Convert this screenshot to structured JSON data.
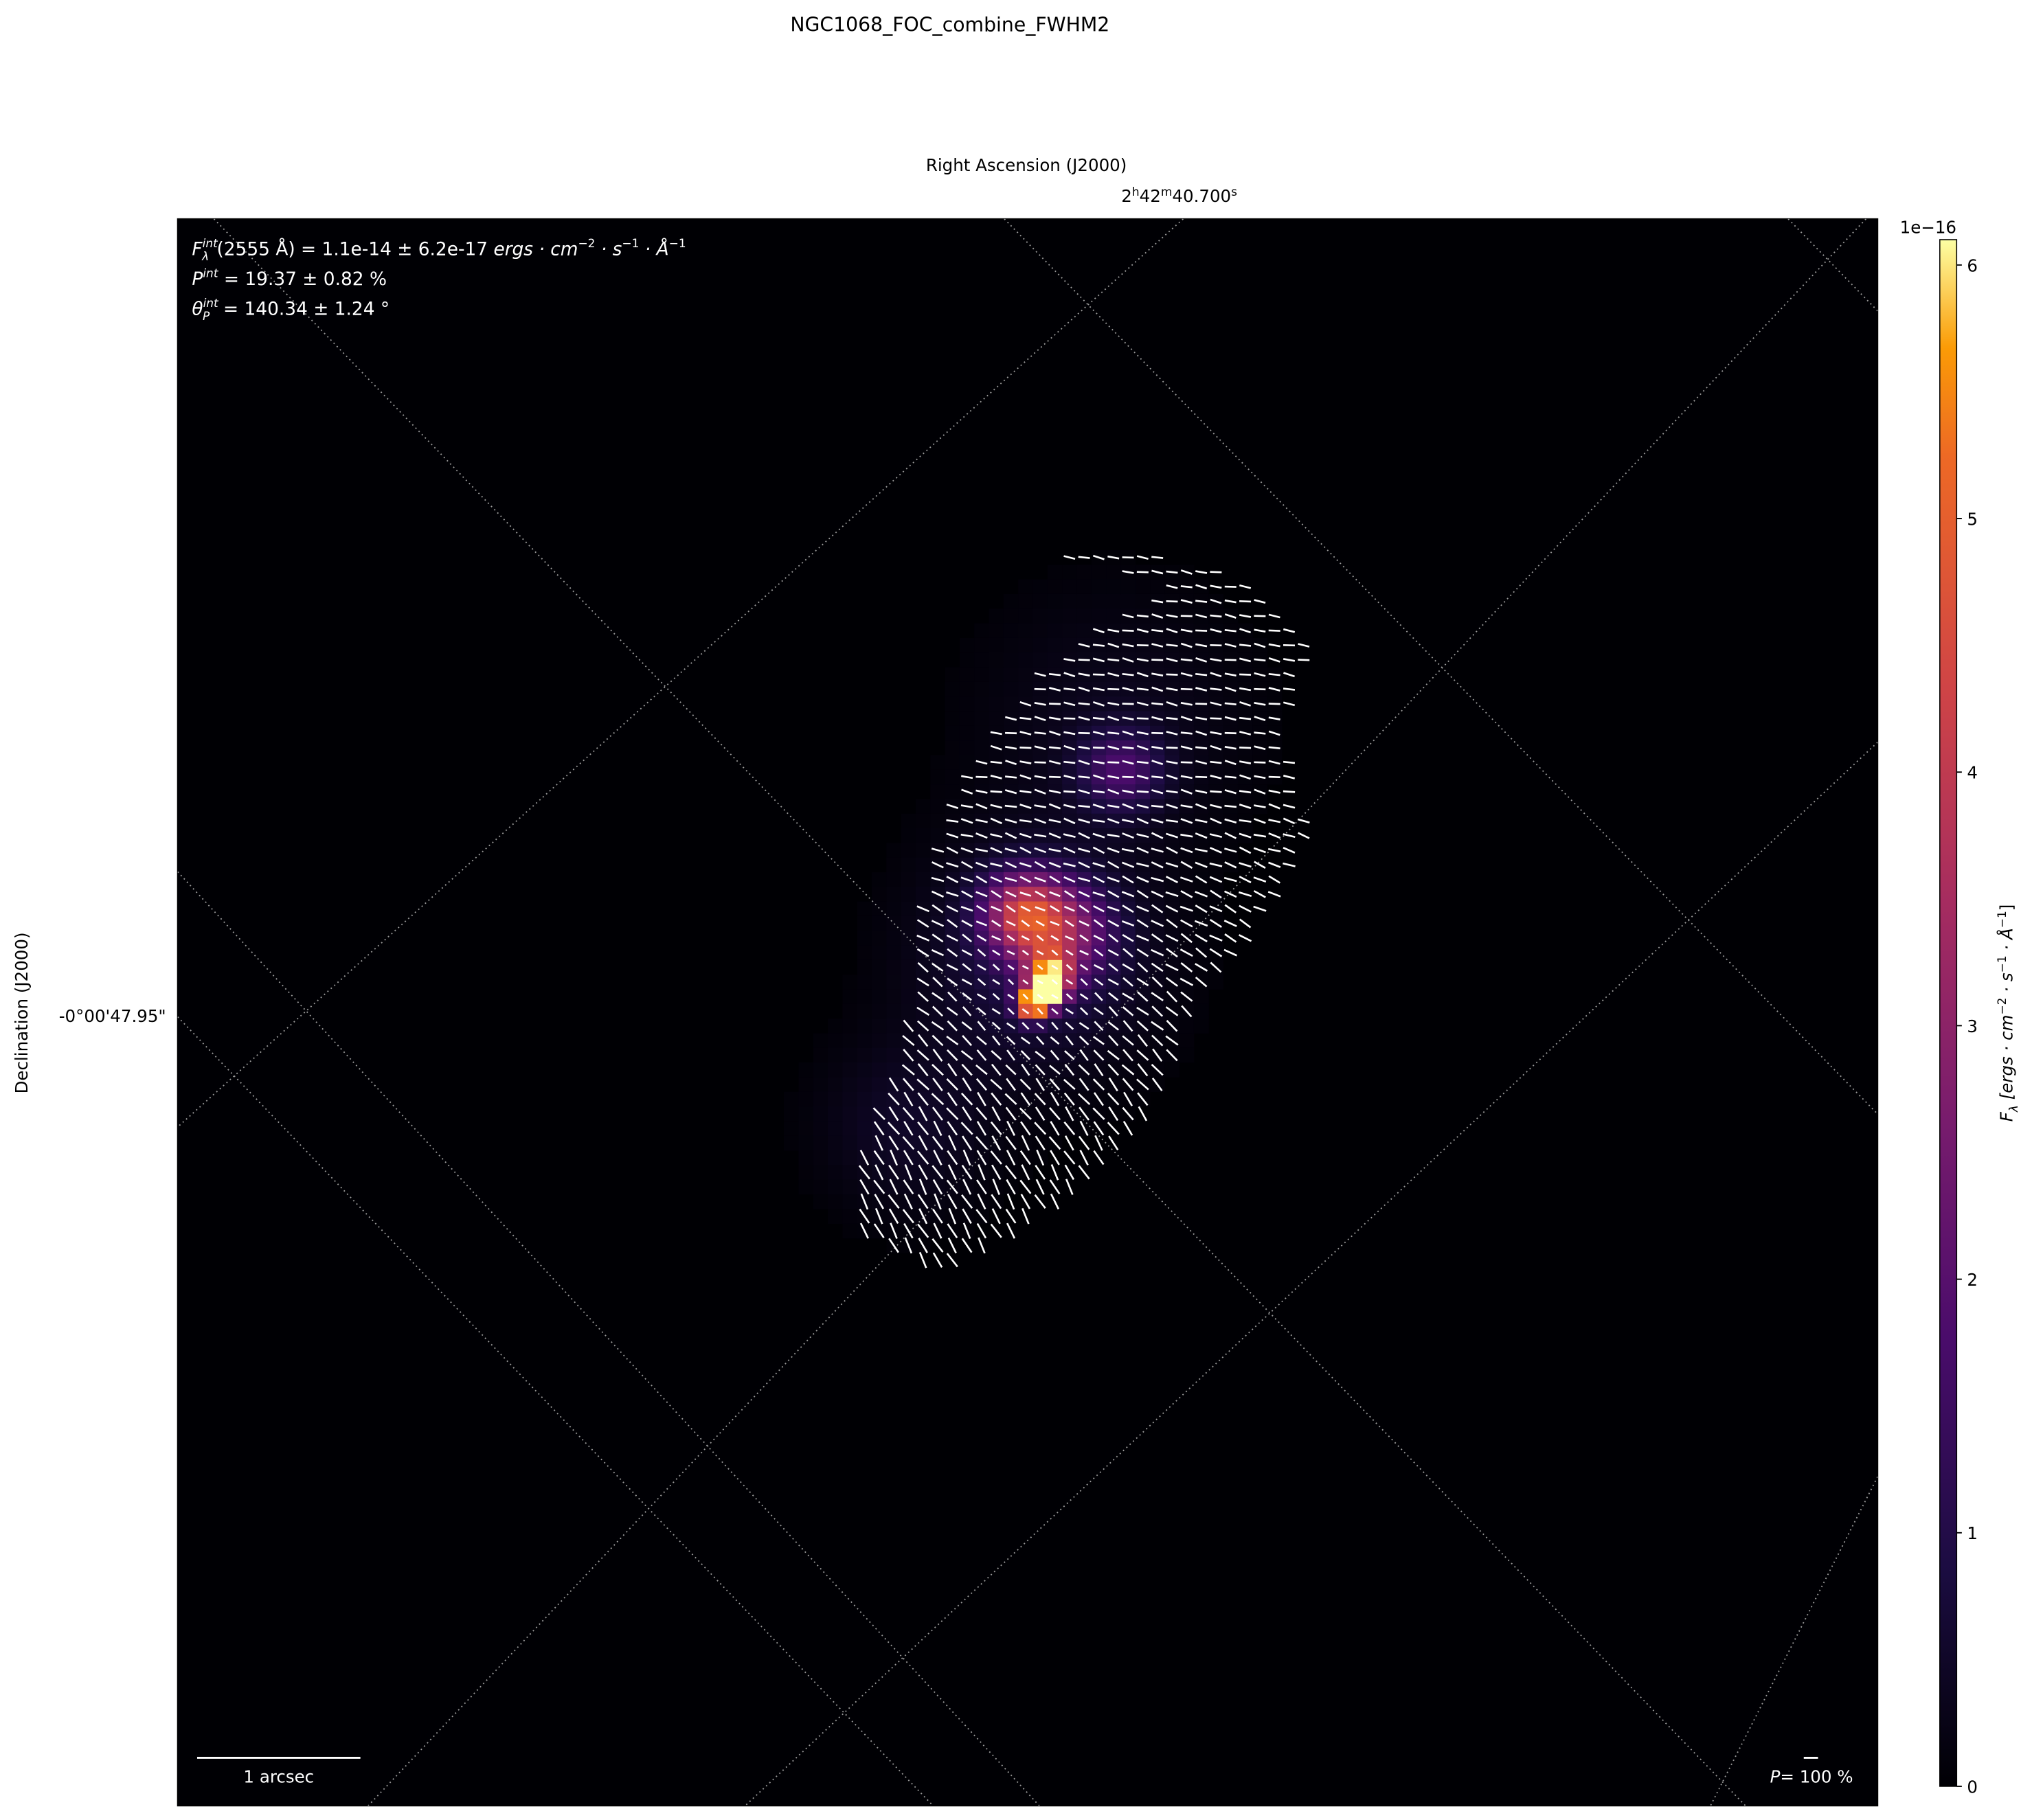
{
  "chart_data": {
    "type": "heatmap",
    "title": "NGC1068_FOC_combine_FWHM2",
    "xlabel": "Right Ascension (J2000)",
    "ylabel": "Declination (J2000)",
    "x_tick_labels": [
      "2h42m40.700s"
    ],
    "x_tick": {
      "h": "2",
      "m": "42",
      "s": "40.700"
    },
    "y_tick_labels": [
      "-0°00'47.95\""
    ],
    "colormap": "inferno",
    "colorbar": {
      "label": "F_λ [ergs · cm^-2 · s^-1 · Å^-1]",
      "label_parts": {
        "sym": "F",
        "sub": "λ",
        "units": "[ergs · cm",
        "e1": "−2",
        "s": " · s",
        "e2": "−1",
        "a": " · Å",
        "e3": "−1",
        "close": "]"
      },
      "offset_text": "1e−16",
      "ticks": [
        "0",
        "1",
        "2",
        "3",
        "4",
        "5",
        "6"
      ],
      "range": [
        0,
        6.1
      ]
    },
    "annotations": {
      "flux": {
        "sym": "F",
        "sup": "int",
        "sub": "λ",
        "text": "(2555 Å) = 1.1e-14 ± 6.2e-17 ",
        "units": "ergs · cm",
        "e1": "−2",
        "s": " · s",
        "e2": "−1",
        "a": " · Å",
        "e3": "−1"
      },
      "pol_deg": {
        "sym": "P",
        "sup": "int",
        "text": " = 19.37 ± 0.82 %"
      },
      "pol_ang": {
        "sym": "θ",
        "sup": "int",
        "sub": "P",
        "text": " = 140.34 ± 1.24 °"
      }
    },
    "scale_bar_label": "1 arcsec",
    "pol_scale_label": {
      "sym": "P",
      "text": "= 100 %"
    },
    "grid": true,
    "colors": {
      "background": "#000004",
      "vectors": "#ffffff",
      "grid": "#9a9a9a"
    }
  }
}
